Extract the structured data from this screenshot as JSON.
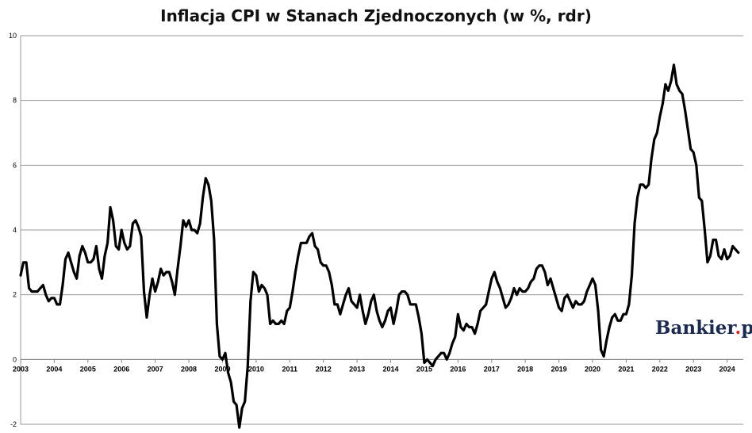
{
  "chart_data": {
    "type": "line",
    "title": "Inflacja CPI w Stanach Zjednoczonych (w %, rdr)",
    "xlabel": "",
    "ylabel": "",
    "ylim": [
      -2,
      10
    ],
    "y_ticks": [
      "-2",
      "0",
      "2",
      "4",
      "6",
      "8",
      "10"
    ],
    "x_ticks": [
      "2003",
      "2004",
      "2005",
      "2006",
      "2007",
      "2008",
      "2009",
      "2010",
      "2011",
      "2012",
      "2013",
      "2014",
      "2015",
      "2016",
      "2017",
      "2018",
      "2019",
      "2020",
      "2021",
      "2022",
      "2023",
      "2024"
    ],
    "grid": "horizontal",
    "series": [
      {
        "color": "#000000",
        "x": [
          "2003-01",
          "2003-02",
          "2003-03",
          "2003-04",
          "2003-05",
          "2003-06",
          "2003-07",
          "2003-08",
          "2003-09",
          "2003-10",
          "2003-11",
          "2003-12",
          "2004-01",
          "2004-02",
          "2004-03",
          "2004-04",
          "2004-05",
          "2004-06",
          "2004-07",
          "2004-08",
          "2004-09",
          "2004-10",
          "2004-11",
          "2004-12",
          "2005-01",
          "2005-02",
          "2005-03",
          "2005-04",
          "2005-05",
          "2005-06",
          "2005-07",
          "2005-08",
          "2005-09",
          "2005-10",
          "2005-11",
          "2005-12",
          "2006-01",
          "2006-02",
          "2006-03",
          "2006-04",
          "2006-05",
          "2006-06",
          "2006-07",
          "2006-08",
          "2006-09",
          "2006-10",
          "2006-11",
          "2006-12",
          "2007-01",
          "2007-02",
          "2007-03",
          "2007-04",
          "2007-05",
          "2007-06",
          "2007-07",
          "2007-08",
          "2007-09",
          "2007-10",
          "2007-11",
          "2007-12",
          "2008-01",
          "2008-02",
          "2008-03",
          "2008-04",
          "2008-05",
          "2008-06",
          "2008-07",
          "2008-08",
          "2008-09",
          "2008-10",
          "2008-11",
          "2008-12",
          "2009-01",
          "2009-02",
          "2009-03",
          "2009-04",
          "2009-05",
          "2009-06",
          "2009-07",
          "2009-08",
          "2009-09",
          "2009-10",
          "2009-11",
          "2009-12",
          "2010-01",
          "2010-02",
          "2010-03",
          "2010-04",
          "2010-05",
          "2010-06",
          "2010-07",
          "2010-08",
          "2010-09",
          "2010-10",
          "2010-11",
          "2010-12",
          "2011-01",
          "2011-02",
          "2011-03",
          "2011-04",
          "2011-05",
          "2011-06",
          "2011-07",
          "2011-08",
          "2011-09",
          "2011-10",
          "2011-11",
          "2011-12",
          "2012-01",
          "2012-02",
          "2012-03",
          "2012-04",
          "2012-05",
          "2012-06",
          "2012-07",
          "2012-08",
          "2012-09",
          "2012-10",
          "2012-11",
          "2012-12",
          "2013-01",
          "2013-02",
          "2013-03",
          "2013-04",
          "2013-05",
          "2013-06",
          "2013-07",
          "2013-08",
          "2013-09",
          "2013-10",
          "2013-11",
          "2013-12",
          "2014-01",
          "2014-02",
          "2014-03",
          "2014-04",
          "2014-05",
          "2014-06",
          "2014-07",
          "2014-08",
          "2014-09",
          "2014-10",
          "2014-11",
          "2014-12",
          "2015-01",
          "2015-02",
          "2015-03",
          "2015-04",
          "2015-05",
          "2015-06",
          "2015-07",
          "2015-08",
          "2015-09",
          "2015-10",
          "2015-11",
          "2015-12",
          "2016-01",
          "2016-02",
          "2016-03",
          "2016-04",
          "2016-05",
          "2016-06",
          "2016-07",
          "2016-08",
          "2016-09",
          "2016-10",
          "2016-11",
          "2016-12",
          "2017-01",
          "2017-02",
          "2017-03",
          "2017-04",
          "2017-05",
          "2017-06",
          "2017-07",
          "2017-08",
          "2017-09",
          "2017-10",
          "2017-11",
          "2017-12",
          "2018-01",
          "2018-02",
          "2018-03",
          "2018-04",
          "2018-05",
          "2018-06",
          "2018-07",
          "2018-08",
          "2018-09",
          "2018-10",
          "2018-11",
          "2018-12",
          "2019-01",
          "2019-02",
          "2019-03",
          "2019-04",
          "2019-05",
          "2019-06",
          "2019-07",
          "2019-08",
          "2019-09",
          "2019-10",
          "2019-11",
          "2019-12",
          "2020-01",
          "2020-02",
          "2020-03",
          "2020-04",
          "2020-05",
          "2020-06",
          "2020-07",
          "2020-08",
          "2020-09",
          "2020-10",
          "2020-11",
          "2020-12",
          "2021-01",
          "2021-02",
          "2021-03",
          "2021-04",
          "2021-05",
          "2021-06",
          "2021-07",
          "2021-08",
          "2021-09",
          "2021-10",
          "2021-11",
          "2021-12",
          "2022-01",
          "2022-02",
          "2022-03",
          "2022-04",
          "2022-05",
          "2022-06",
          "2022-07",
          "2022-08",
          "2022-09",
          "2022-10",
          "2022-11",
          "2022-12",
          "2023-01",
          "2023-02",
          "2023-03",
          "2023-04",
          "2023-05",
          "2023-06",
          "2023-07",
          "2023-08",
          "2023-09",
          "2023-10",
          "2023-11",
          "2023-12",
          "2024-01",
          "2024-02",
          "2024-03",
          "2024-04",
          "2024-05"
        ],
        "values": [
          2.6,
          3.0,
          3.0,
          2.2,
          2.1,
          2.1,
          2.1,
          2.2,
          2.3,
          2.0,
          1.8,
          1.9,
          1.9,
          1.7,
          1.7,
          2.3,
          3.1,
          3.3,
          3.0,
          2.7,
          2.5,
          3.2,
          3.5,
          3.3,
          3.0,
          3.0,
          3.1,
          3.5,
          2.8,
          2.5,
          3.2,
          3.6,
          4.7,
          4.3,
          3.5,
          3.4,
          4.0,
          3.6,
          3.4,
          3.5,
          4.2,
          4.3,
          4.1,
          3.8,
          2.1,
          1.3,
          2.0,
          2.5,
          2.1,
          2.4,
          2.8,
          2.6,
          2.7,
          2.7,
          2.4,
          2.0,
          2.8,
          3.5,
          4.3,
          4.1,
          4.3,
          4.0,
          4.0,
          3.9,
          4.2,
          5.0,
          5.6,
          5.4,
          4.9,
          3.7,
          1.1,
          0.1,
          0.0,
          0.2,
          -0.4,
          -0.7,
          -1.3,
          -1.4,
          -2.1,
          -1.5,
          -1.3,
          -0.2,
          1.8,
          2.7,
          2.6,
          2.1,
          2.3,
          2.2,
          2.0,
          1.1,
          1.2,
          1.1,
          1.1,
          1.2,
          1.1,
          1.5,
          1.6,
          2.1,
          2.7,
          3.2,
          3.6,
          3.6,
          3.6,
          3.8,
          3.9,
          3.5,
          3.4,
          3.0,
          2.9,
          2.9,
          2.7,
          2.3,
          1.7,
          1.7,
          1.4,
          1.7,
          2.0,
          2.2,
          1.8,
          1.7,
          1.6,
          2.0,
          1.5,
          1.1,
          1.4,
          1.8,
          2.0,
          1.5,
          1.2,
          1.0,
          1.2,
          1.5,
          1.6,
          1.1,
          1.5,
          2.0,
          2.1,
          2.1,
          2.0,
          1.7,
          1.7,
          1.7,
          1.3,
          0.8,
          -0.1,
          0.0,
          -0.1,
          -0.2,
          0.0,
          0.1,
          0.2,
          0.2,
          0.0,
          0.2,
          0.5,
          0.7,
          1.4,
          1.0,
          0.9,
          1.1,
          1.0,
          1.0,
          0.8,
          1.1,
          1.5,
          1.6,
          1.7,
          2.1,
          2.5,
          2.7,
          2.4,
          2.2,
          1.9,
          1.6,
          1.7,
          1.9,
          2.2,
          2.0,
          2.2,
          2.1,
          2.1,
          2.2,
          2.4,
          2.5,
          2.8,
          2.9,
          2.9,
          2.7,
          2.3,
          2.5,
          2.2,
          1.9,
          1.6,
          1.5,
          1.9,
          2.0,
          1.8,
          1.6,
          1.8,
          1.7,
          1.7,
          1.8,
          2.1,
          2.3,
          2.5,
          2.3,
          1.5,
          0.3,
          0.1,
          0.6,
          1.0,
          1.3,
          1.4,
          1.2,
          1.2,
          1.4,
          1.4,
          1.7,
          2.6,
          4.2,
          5.0,
          5.4,
          5.4,
          5.3,
          5.4,
          6.2,
          6.8,
          7.0,
          7.5,
          7.9,
          8.5,
          8.3,
          8.6,
          9.1,
          8.5,
          8.3,
          8.2,
          7.7,
          7.1,
          6.5,
          6.4,
          6.0,
          5.0,
          4.9,
          4.0,
          3.0,
          3.2,
          3.7,
          3.7,
          3.2,
          3.1,
          3.4,
          3.1,
          3.2,
          3.5,
          3.4,
          3.3
        ]
      }
    ]
  },
  "branding": {
    "logo_text": "Bankier",
    "logo_dot": ".",
    "logo_suffix": "pl"
  }
}
